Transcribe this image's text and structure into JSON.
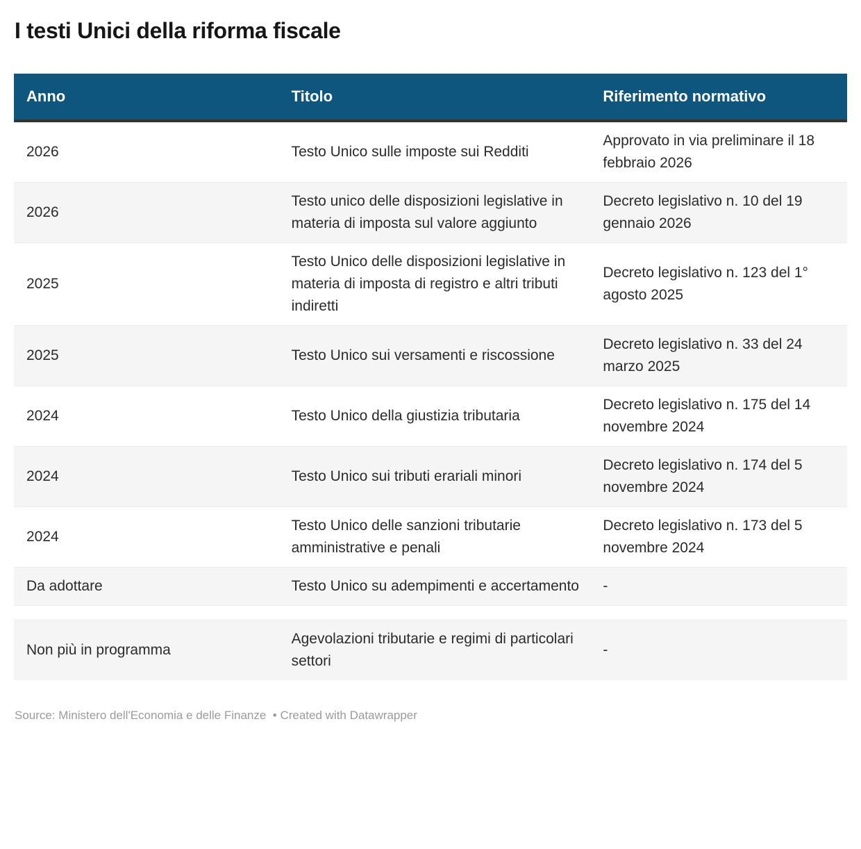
{
  "title": "I testi Unici della riforma fiscale",
  "chart_data": {
    "type": "table",
    "title": "I testi Unici della riforma fiscale",
    "columns": [
      "Anno",
      "Titolo",
      "Riferimento normativo"
    ],
    "rows": [
      [
        "2026",
        "Testo Unico sulle imposte sui Redditi",
        "Approvato in via preliminare il 18 febbraio 2026"
      ],
      [
        "2026",
        "Testo unico delle disposizioni legislative in materia di imposta sul valore aggiunto",
        "Decreto legislativo n. 10 del 19 gennaio 2026"
      ],
      [
        "2025",
        "Testo Unico delle disposizioni legislative in materia di imposta di registro e altri tributi indiretti",
        "Decreto legislativo n. 123 del 1° agosto 2025"
      ],
      [
        "2025",
        "Testo Unico sui versamenti e riscossione",
        "Decreto legislativo n. 33 del 24 marzo 2025"
      ],
      [
        "2024",
        "Testo Unico della giustizia tributaria",
        "Decreto legislativo n. 175 del 14 novembre 2024"
      ],
      [
        "2024",
        "Testo Unico sui tributi erariali minori",
        "Decreto legislativo n. 174 del 5 novembre 2024"
      ],
      [
        "2024",
        "Testo Unico delle sanzioni tributarie amministrative e penali",
        "Decreto legislativo n. 173 del 5 novembre 2024"
      ],
      [
        "Da adottare",
        "Testo Unico su adempimenti e accertamento",
        "-"
      ],
      [
        "Non più in programma",
        "Agevolazioni tributarie e regimi di particolari settori",
        "-"
      ]
    ],
    "separator_before_row": 8,
    "layout": {
      "striped": true,
      "header_position": "top",
      "grid": "horizontal-only"
    }
  },
  "footer": {
    "text": "Source: Ministero dell'Economia e delle Finanze  • Created with Datawrapper"
  },
  "colors": {
    "header_bg": "#0f567e",
    "header_text": "#ffffff",
    "header_underline": "#333333",
    "row_alt_bg": "#f5f5f5",
    "row_border": "#ececec",
    "body_text": "#2b2b2b",
    "title_text": "#161616",
    "footer_text": "#9b9b9b"
  }
}
